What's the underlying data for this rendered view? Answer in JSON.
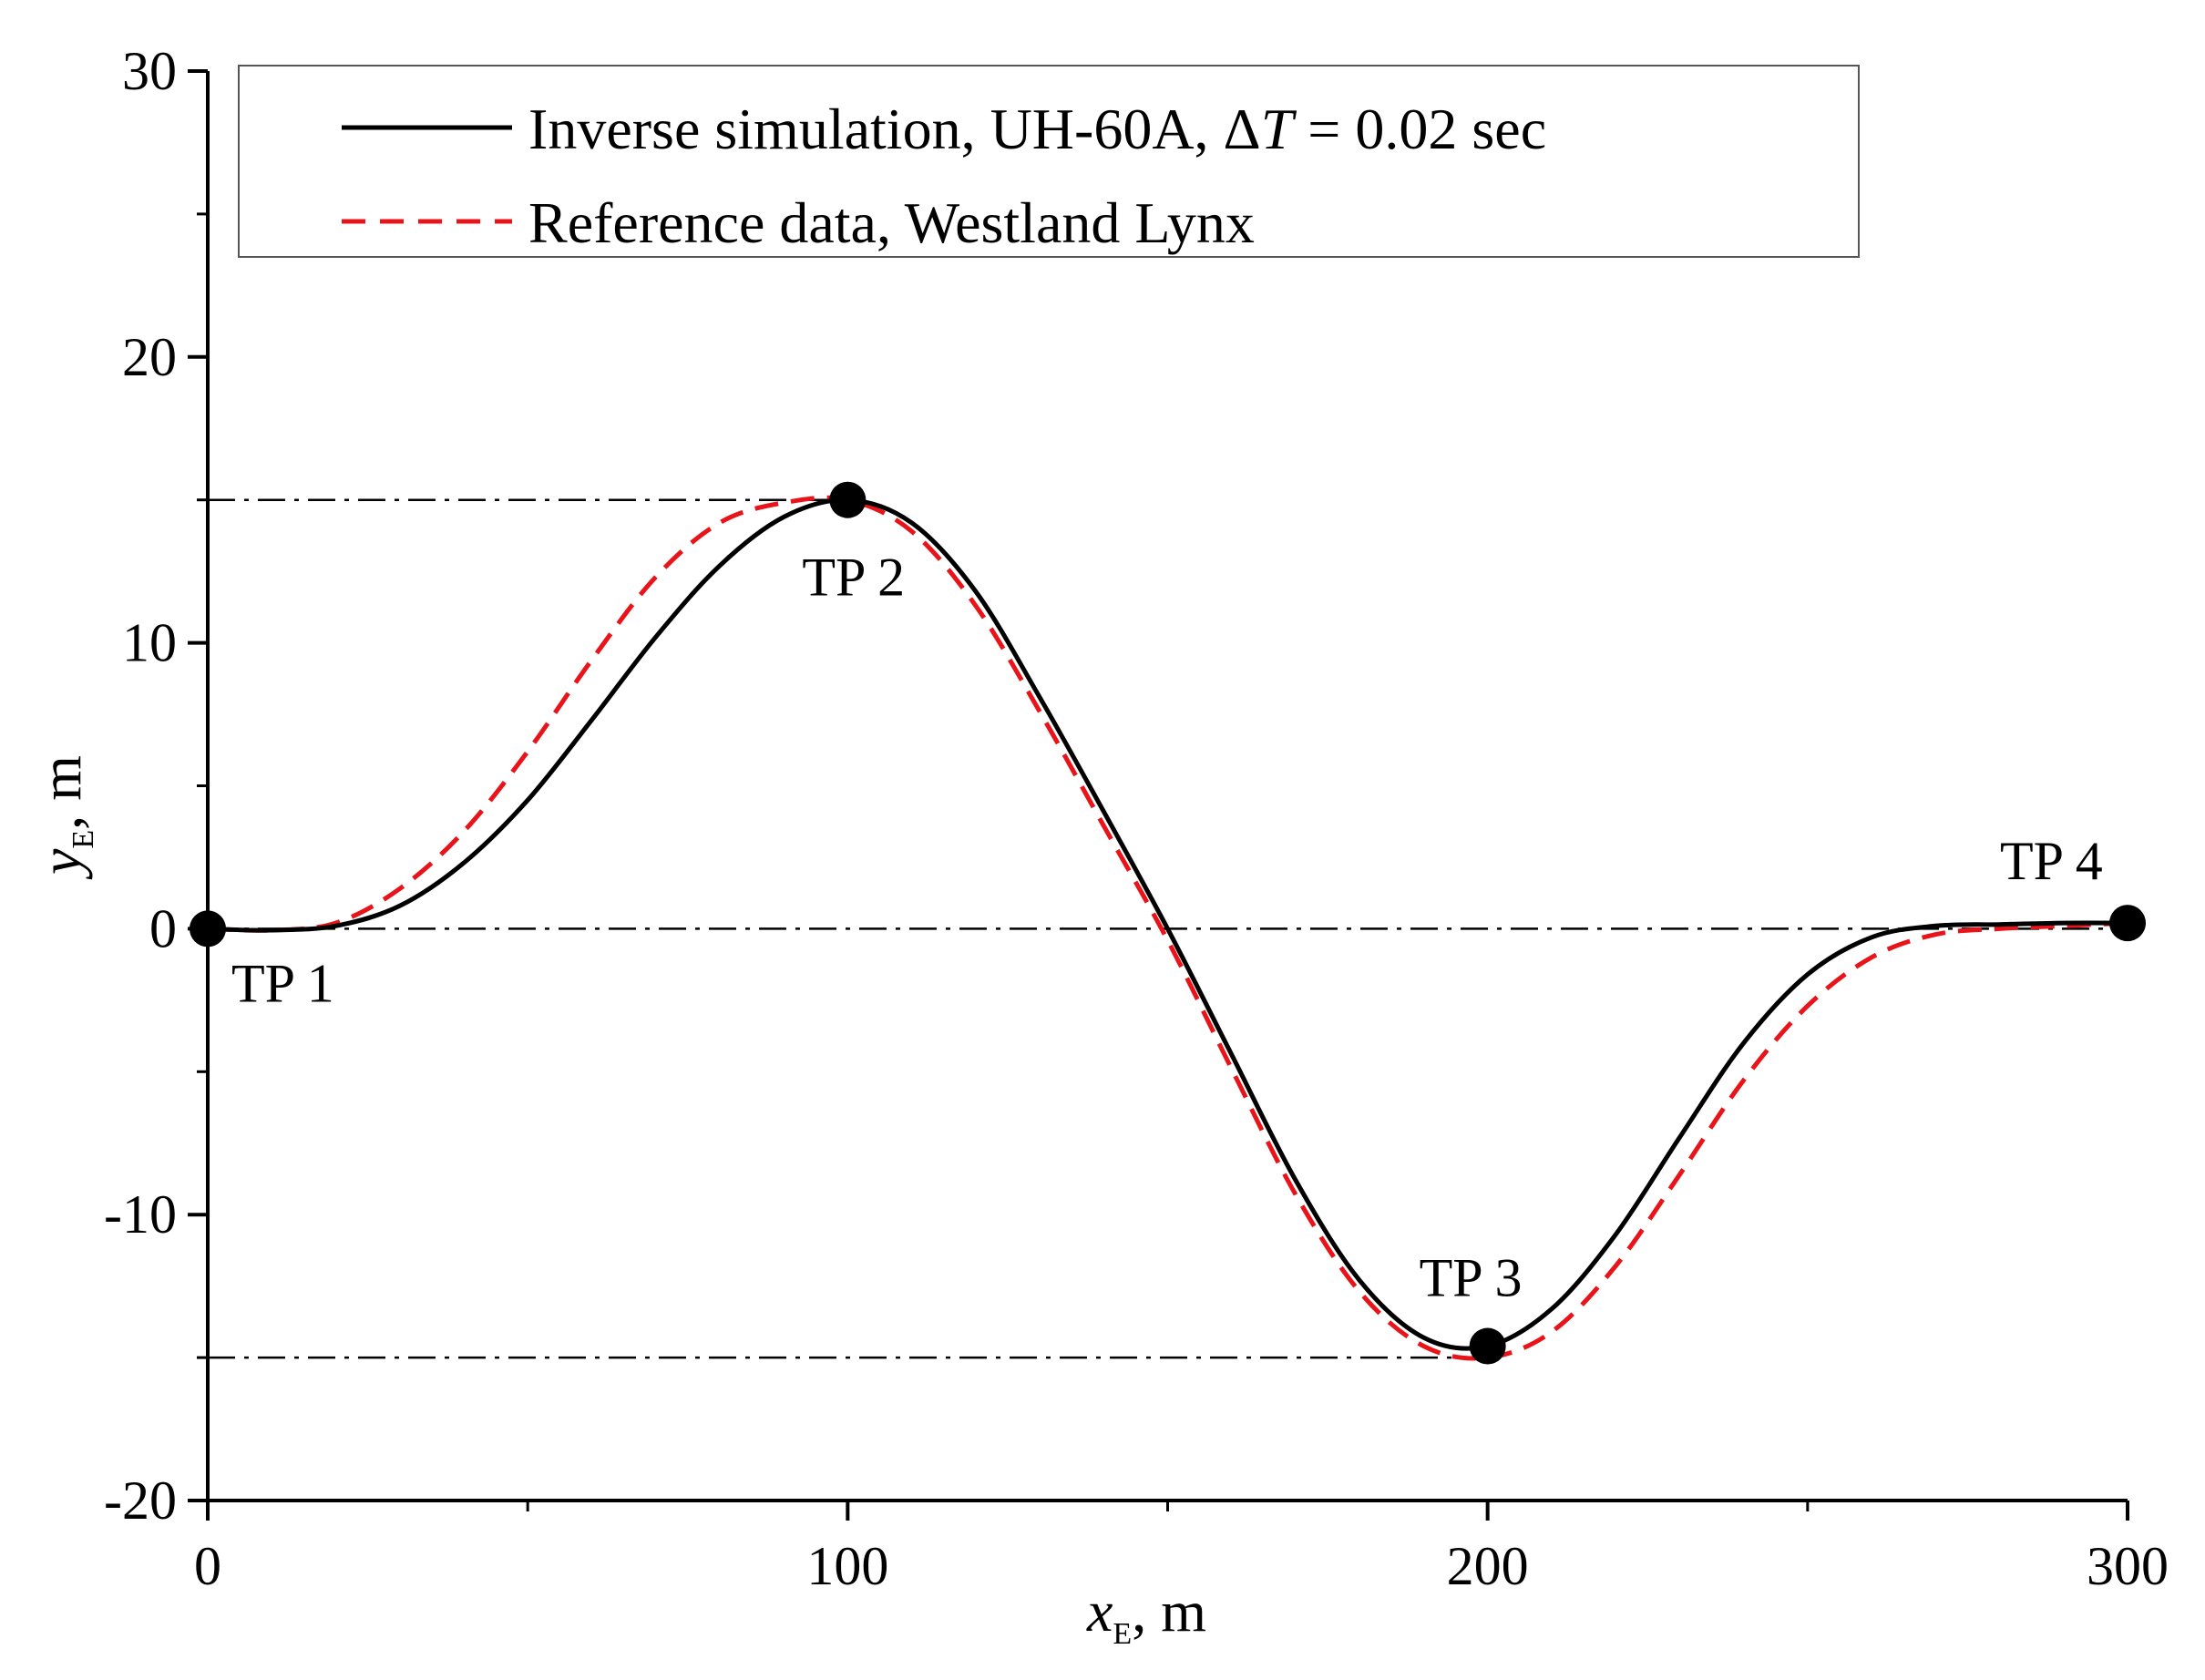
{
  "chart_data": {
    "type": "line",
    "xlabel": "x",
    "xlabel_sub": "E",
    "xlabel_unit": ", m",
    "ylabel": "y",
    "ylabel_sub": "E",
    "ylabel_unit": ", m",
    "xlim": [
      0,
      300
    ],
    "ylim": [
      -20,
      30
    ],
    "xticks": [
      0,
      100,
      200,
      300
    ],
    "yticks": [
      -20,
      -10,
      0,
      10,
      20,
      30
    ],
    "xticks_minor": [
      50,
      150,
      250
    ],
    "yticks_minor": [
      -15,
      -5,
      5,
      15,
      25
    ],
    "grid": false,
    "legend_position": "top-left",
    "legend": {
      "inverse_prefix": "Inverse simulation, UH-60A, Δ",
      "inverse_italic": "T",
      "inverse_suffix": " = 0.02 sec",
      "reference": "Reference data, Westland Lynx"
    },
    "series": [
      {
        "name": "Inverse simulation, UH-60A, ΔT = 0.02 sec",
        "color": "#000000",
        "style": "solid",
        "x": [
          0,
          10,
          20,
          30,
          40,
          50,
          60,
          70,
          80,
          90,
          100,
          110,
          120,
          130,
          140,
          150,
          160,
          170,
          180,
          190,
          200,
          210,
          220,
          230,
          240,
          250,
          260,
          270,
          280,
          290,
          300
        ],
        "y": [
          0,
          -0.05,
          0.1,
          0.8,
          2.3,
          4.5,
          7.3,
          10.2,
          12.7,
          14.4,
          15.0,
          14.2,
          11.8,
          8.1,
          4.1,
          0.0,
          -4.4,
          -8.8,
          -12.3,
          -14.3,
          -14.6,
          -13.3,
          -10.7,
          -7.3,
          -4.0,
          -1.6,
          -0.3,
          0.1,
          0.15,
          0.2,
          0.2
        ]
      },
      {
        "name": "Reference data, Westland Lynx",
        "color": "#e8141a",
        "style": "dashed",
        "x": [
          0,
          10,
          20,
          30,
          40,
          50,
          60,
          70,
          80,
          90,
          100,
          110,
          120,
          130,
          140,
          150,
          160,
          170,
          180,
          190,
          200,
          210,
          220,
          230,
          240,
          250,
          260,
          270,
          280,
          290,
          300
        ],
        "y": [
          0,
          -0.05,
          0.2,
          1.4,
          3.4,
          6.2,
          9.4,
          12.3,
          14.2,
          14.9,
          15.0,
          13.9,
          11.3,
          7.6,
          3.6,
          -0.4,
          -4.9,
          -9.3,
          -12.7,
          -14.6,
          -15.0,
          -14.1,
          -11.8,
          -8.6,
          -5.3,
          -2.7,
          -1.0,
          -0.2,
          0.0,
          0.1,
          0.2
        ]
      }
    ],
    "reference_lines": [
      {
        "y": 15,
        "x_from": 0,
        "x_to": 100
      },
      {
        "y": 0,
        "x_from": 0,
        "x_to": 300
      },
      {
        "y": -15,
        "x_from": 0,
        "x_to": 200
      }
    ],
    "turn_points": [
      {
        "label": "TP 1",
        "x": 0,
        "y": 0
      },
      {
        "label": "TP 2",
        "x": 100,
        "y": 15
      },
      {
        "label": "TP 3",
        "x": 200,
        "y": -14.6
      },
      {
        "label": "TP 4",
        "x": 300,
        "y": 0.2
      }
    ]
  }
}
